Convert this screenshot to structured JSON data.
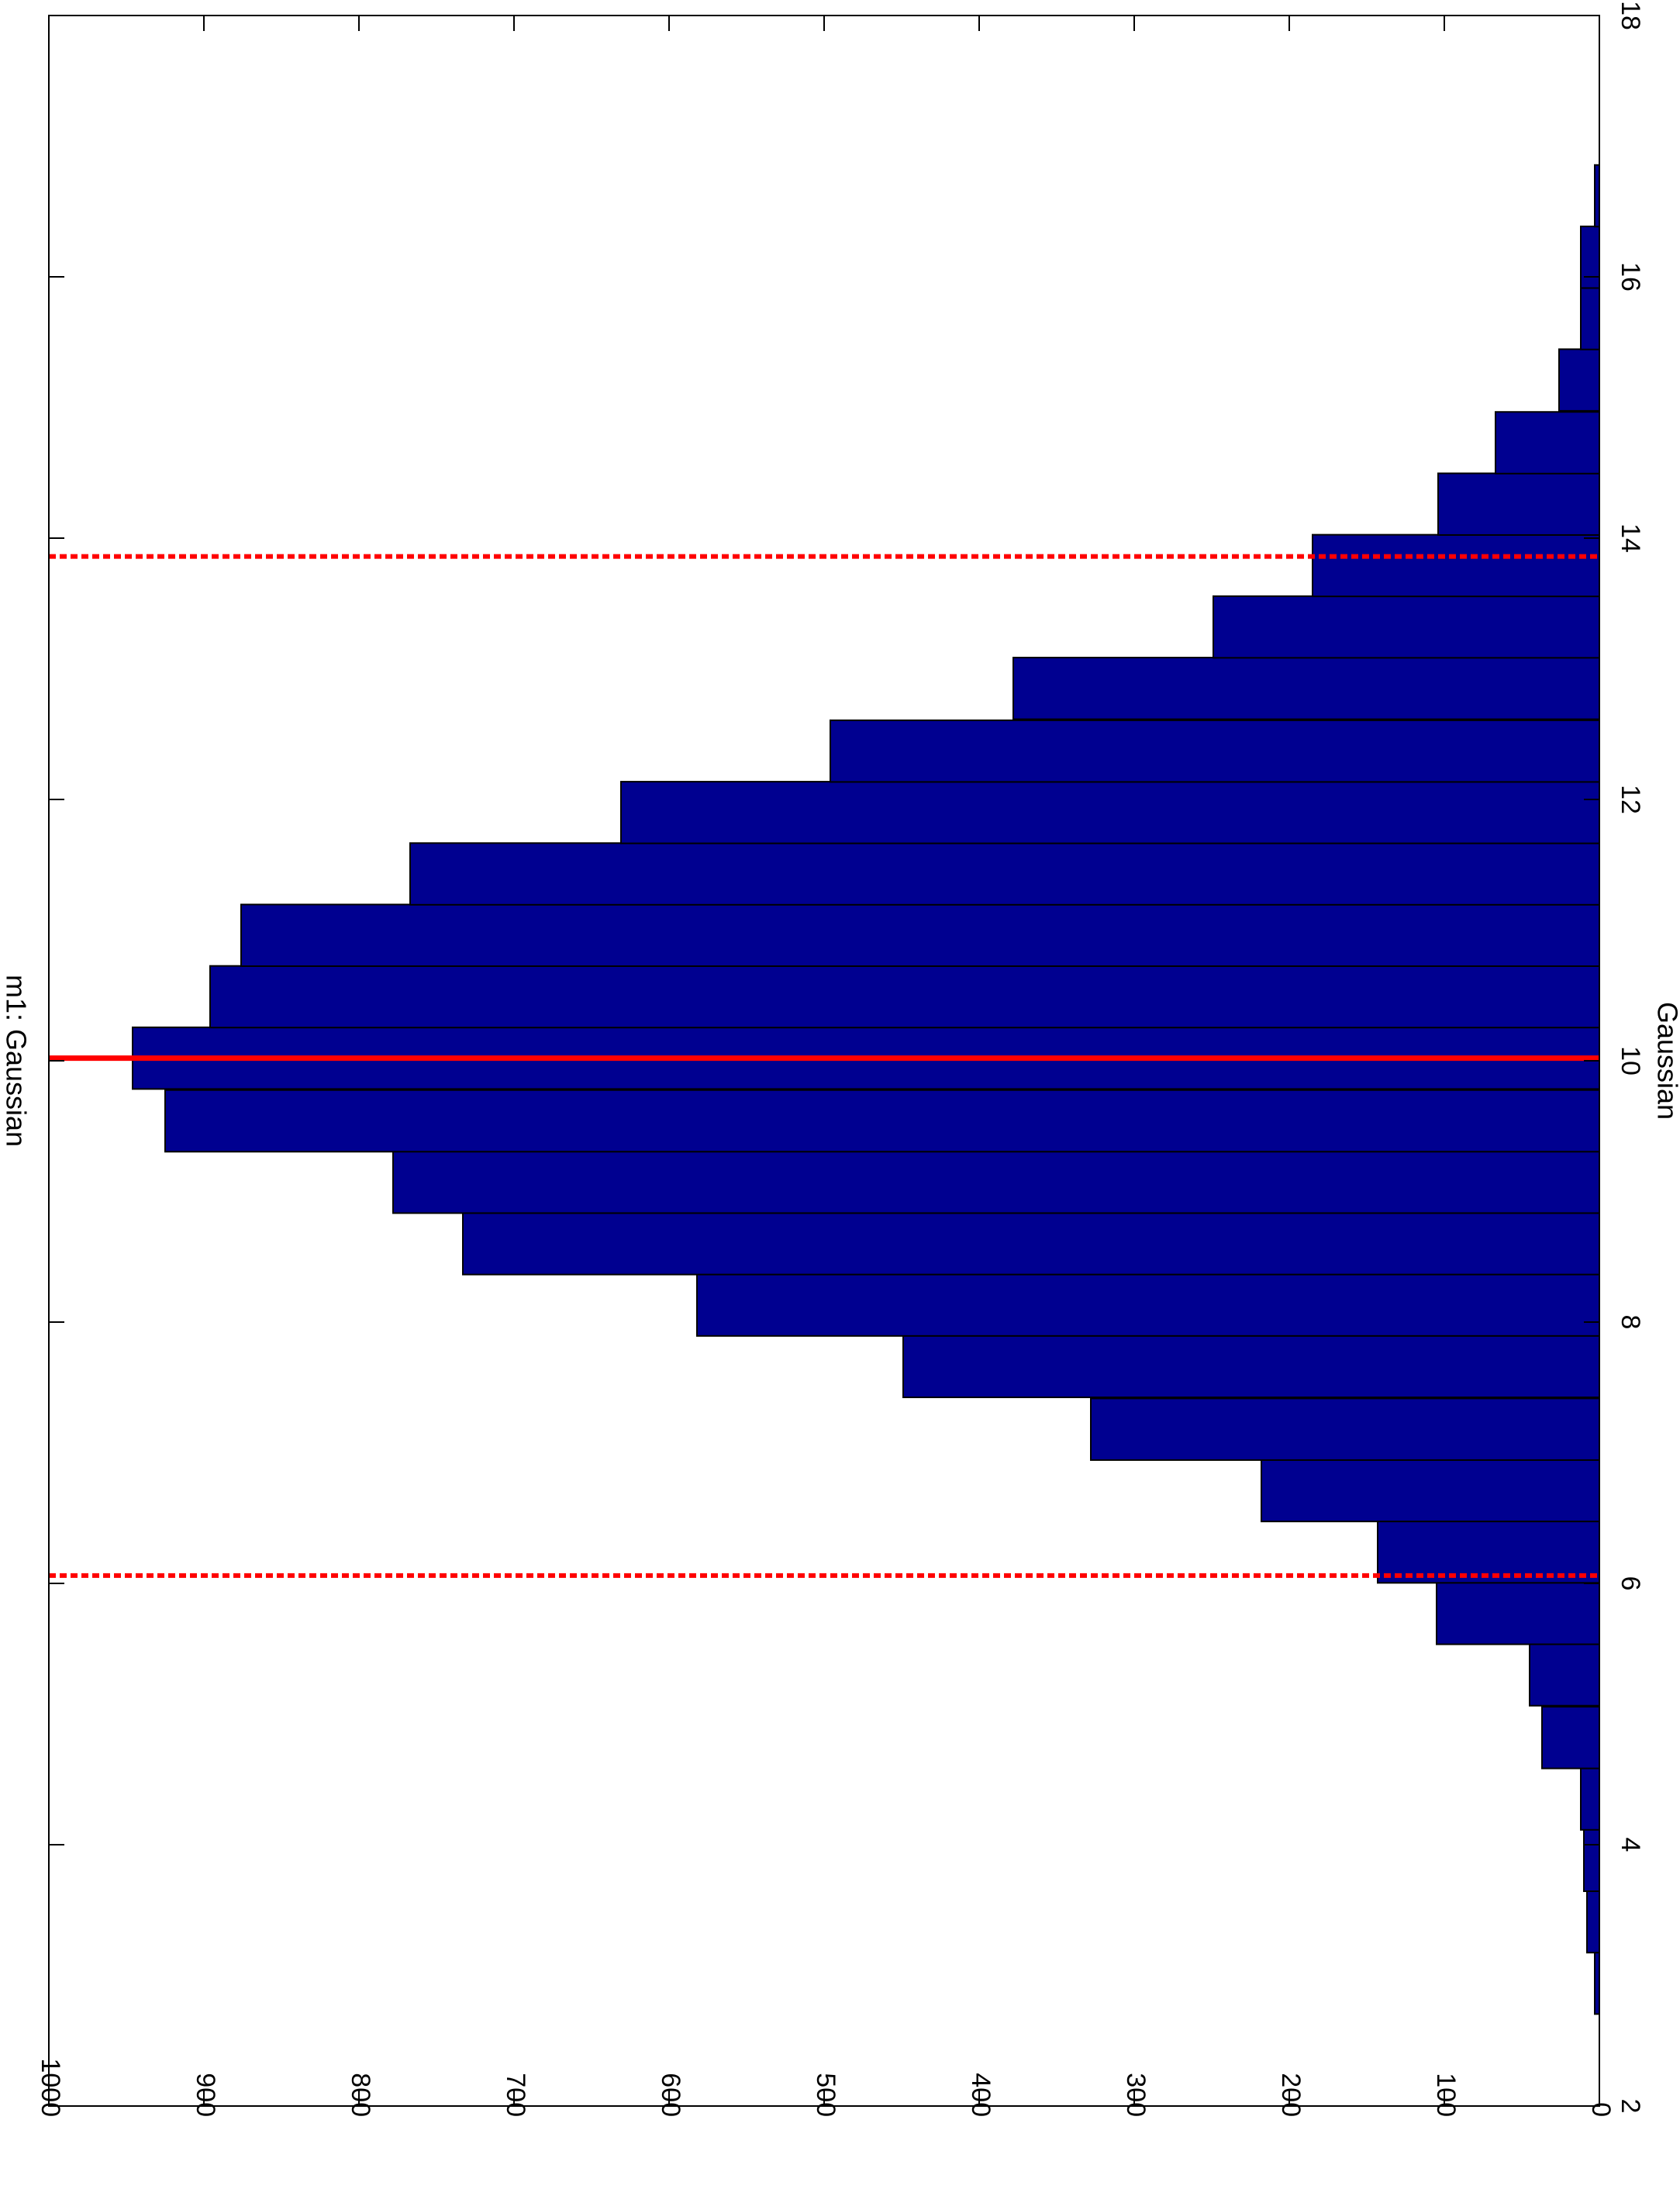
{
  "chart_data": {
    "type": "bar",
    "orientation": "rotated-90",
    "title": "m1: Gaussian",
    "xlabel": "Gaussian",
    "ylabel": "",
    "xlim": [
      2,
      18
    ],
    "ylim": [
      0,
      1000
    ],
    "x_ticks": [
      2,
      4,
      6,
      8,
      10,
      12,
      14,
      16,
      18
    ],
    "y_ticks": [
      0,
      100,
      200,
      300,
      400,
      500,
      600,
      700,
      800,
      900,
      1000
    ],
    "bin_width": 0.472,
    "bin_centers": [
      2.94,
      3.41,
      3.88,
      4.35,
      4.82,
      5.3,
      5.77,
      6.24,
      6.71,
      7.18,
      7.66,
      8.13,
      8.6,
      9.07,
      9.54,
      10.02,
      10.49,
      10.96,
      11.43,
      11.9,
      12.37,
      12.85,
      13.32,
      13.79,
      14.26,
      14.73,
      15.21,
      15.68,
      16.15,
      16.62
    ],
    "values": [
      3,
      8,
      10,
      12,
      37,
      45,
      105,
      143,
      218,
      328,
      449,
      582,
      733,
      778,
      925,
      946,
      896,
      876,
      767,
      631,
      496,
      378,
      249,
      185,
      104,
      67,
      26,
      12,
      12,
      3
    ],
    "bar_color": "#000090",
    "bar_edge_color": "#000000",
    "reference_lines": {
      "mean": {
        "x": 10.02,
        "style": "solid",
        "color": "#ff0000"
      },
      "lower": {
        "x": 6.06,
        "style": "dotted",
        "color": "#ff0000"
      },
      "upper": {
        "x": 13.86,
        "style": "dotted",
        "color": "#ff0000"
      }
    },
    "grid": false,
    "legend": "none"
  }
}
